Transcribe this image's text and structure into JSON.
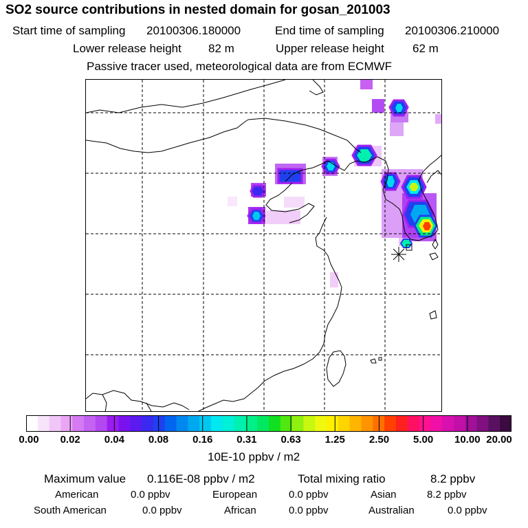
{
  "title": "SO2 source contributions in nested domain for gosan_201003",
  "header": {
    "start_label": "Start time of sampling",
    "start_value": "20100306.180000",
    "end_label": "End time of sampling",
    "end_value": "20100306.210000",
    "lower_label": "Lower release height",
    "lower_value": "82 m",
    "upper_label": "Upper release height",
    "upper_value": "62 m",
    "note": "Passive tracer used, meteorological data are from ECMWF"
  },
  "colorbar": {
    "ticks": [
      "0.00",
      "0.02",
      "0.04",
      "0.08",
      "0.16",
      "0.31",
      "0.63",
      "1.25",
      "2.50",
      "5.00",
      "10.00",
      "20.00"
    ],
    "colors": [
      "#ffffff",
      "#f7e4fb",
      "#f0c6f8",
      "#eaa6f5",
      "#d57af3",
      "#c462f1",
      "#b347f0",
      "#9a1cf0",
      "#7a12f0",
      "#5b1af0",
      "#3a2af0",
      "#2040f0",
      "#0066f0",
      "#0088f0",
      "#00a8f0",
      "#00c8f0",
      "#00e8f0",
      "#00f0d8",
      "#00f0b0",
      "#00f088",
      "#00e860",
      "#10e020",
      "#50e810",
      "#90f010",
      "#c8f810",
      "#f0f810",
      "#fff000",
      "#ffd400",
      "#ffb400",
      "#ff9400",
      "#ff7000",
      "#ff4000",
      "#ff2020",
      "#ff1060",
      "#ff1090",
      "#f010a8",
      "#d810b0",
      "#c010a8",
      "#a01098",
      "#801080",
      "#5a1060",
      "#3a0a40"
    ],
    "unit": "10E-10 ppbv / m2"
  },
  "footer": {
    "max_label": "Maximum value",
    "max_value": "0.116E-08 ppbv / m2",
    "total_label": "Total mixing ratio",
    "total_value": "8.2 ppbv",
    "regions": [
      {
        "name": "American",
        "value": "0.0 ppbv"
      },
      {
        "name": "European",
        "value": "0.0 ppbv"
      },
      {
        "name": "Asian",
        "value": "8.2 ppbv"
      },
      {
        "name": "South American",
        "value": "0.0 ppbv"
      },
      {
        "name": "African",
        "value": "0.0 ppbv"
      },
      {
        "name": "Australian",
        "value": "0.0 ppbv"
      }
    ]
  }
}
